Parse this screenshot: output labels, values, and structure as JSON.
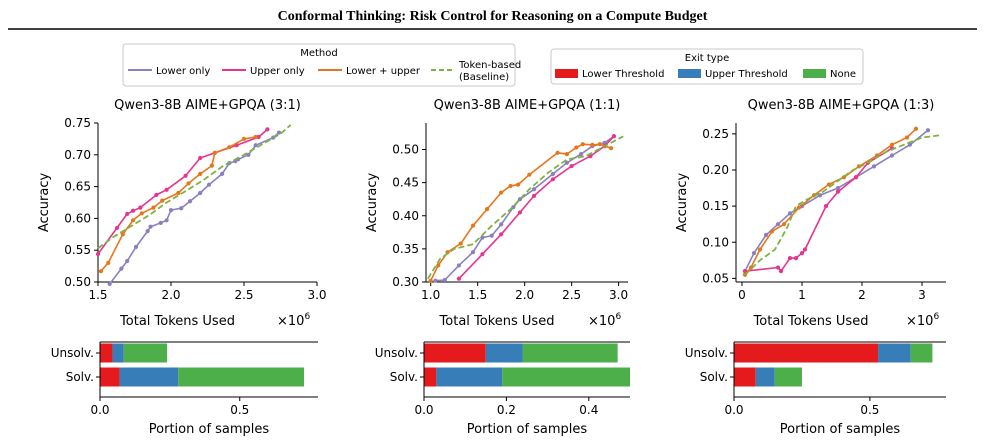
{
  "header": {
    "title": "Conformal Thinking: Risk Control for Reasoning on a Compute Budget"
  },
  "legend_method": {
    "title": "Method",
    "items": [
      {
        "label": "Lower only",
        "color": "#8c7fc0",
        "dash": false
      },
      {
        "label": "Upper only",
        "color": "#e8348c",
        "dash": false
      },
      {
        "label": "Lower + upper",
        "color": "#e6761b",
        "dash": false
      },
      {
        "label_lines": [
          "Token-based",
          "(Baseline)"
        ],
        "color": "#7cb342",
        "dash": true
      }
    ]
  },
  "legend_exit": {
    "title": "Exit type",
    "items": [
      {
        "label": "Lower Threshold",
        "color": "#e41a1c"
      },
      {
        "label": "Upper Threshold",
        "color": "#377eb8"
      },
      {
        "label": "None",
        "color": "#4daf4a"
      }
    ]
  },
  "chart_data": [
    {
      "type": "line",
      "title": "Qwen3-8B AIME+GPQA (3:1)",
      "xlabel": "Total Tokens Used",
      "xscale_label": "×10^6",
      "ylabel": "Accuracy",
      "xlim": [
        1.5,
        3.0
      ],
      "ylim": [
        0.5,
        0.75
      ],
      "xticks": [
        1.5,
        2.0,
        2.5,
        3.0
      ],
      "yticks": [
        0.5,
        0.55,
        0.6,
        0.65,
        0.7,
        0.75
      ],
      "series": [
        {
          "name": "Lower only",
          "color": "#8c7fc0",
          "markers": true,
          "x": [
            1.58,
            1.66,
            1.7,
            1.76,
            1.84,
            1.86,
            1.93,
            1.97,
            2.0,
            2.07,
            2.13,
            2.2,
            2.26,
            2.35,
            2.4,
            2.44,
            2.46,
            2.53,
            2.58,
            2.7,
            2.74
          ],
          "y": [
            0.497,
            0.521,
            0.533,
            0.555,
            0.58,
            0.587,
            0.593,
            0.597,
            0.613,
            0.616,
            0.627,
            0.64,
            0.653,
            0.67,
            0.687,
            0.69,
            0.693,
            0.7,
            0.715,
            0.727,
            0.735
          ]
        },
        {
          "name": "Upper only",
          "color": "#e8348c",
          "markers": true,
          "x": [
            1.5,
            1.63,
            1.7,
            1.74,
            1.79,
            1.9,
            1.97,
            2.1,
            2.2,
            2.3,
            2.45,
            2.6,
            2.66
          ],
          "y": [
            0.544,
            0.585,
            0.607,
            0.612,
            0.617,
            0.637,
            0.645,
            0.667,
            0.695,
            0.703,
            0.715,
            0.728,
            0.74
          ]
        },
        {
          "name": "Lower + upper",
          "color": "#e6761b",
          "markers": true,
          "x": [
            1.52,
            1.57,
            1.67,
            1.74,
            1.8,
            1.88,
            1.94,
            2.05,
            2.12,
            2.2,
            2.28,
            2.3,
            2.4,
            2.5,
            2.58
          ],
          "y": [
            0.517,
            0.53,
            0.575,
            0.597,
            0.608,
            0.617,
            0.628,
            0.64,
            0.655,
            0.67,
            0.683,
            0.703,
            0.712,
            0.725,
            0.728
          ]
        },
        {
          "name": "Token-based (Baseline)",
          "color": "#7cb342",
          "dash": true,
          "x": [
            1.5,
            1.6,
            1.72,
            1.85,
            1.97,
            2.1,
            2.22,
            2.36,
            2.5,
            2.62,
            2.75,
            2.82
          ],
          "y": [
            0.553,
            0.57,
            0.587,
            0.605,
            0.625,
            0.643,
            0.66,
            0.683,
            0.7,
            0.716,
            0.733,
            0.747
          ]
        }
      ]
    },
    {
      "type": "line",
      "title": "Qwen3-8B AIME+GPQA (1:1)",
      "xlabel": "Total Tokens Used",
      "xscale_label": "×10^6",
      "ylabel": "Accuracy",
      "xlim": [
        0.95,
        3.1
      ],
      "ylim": [
        0.3,
        0.54
      ],
      "xticks": [
        1.0,
        1.5,
        2.0,
        2.5,
        3.0
      ],
      "yticks": [
        0.3,
        0.35,
        0.4,
        0.45,
        0.5
      ],
      "series": [
        {
          "name": "Lower only",
          "color": "#8c7fc0",
          "markers": true,
          "x": [
            1.05,
            1.15,
            1.3,
            1.45,
            1.55,
            1.65,
            1.75,
            1.88,
            1.95,
            2.1,
            2.3,
            2.45,
            2.6,
            2.72,
            2.85,
            2.95
          ],
          "y": [
            0.302,
            0.303,
            0.325,
            0.345,
            0.367,
            0.37,
            0.387,
            0.413,
            0.425,
            0.44,
            0.463,
            0.48,
            0.493,
            0.505,
            0.51,
            0.52
          ]
        },
        {
          "name": "Upper only",
          "color": "#e8348c",
          "markers": true,
          "x": [
            1.3,
            1.55,
            1.75,
            1.95,
            2.1,
            2.3,
            2.5,
            2.7,
            2.85,
            2.95
          ],
          "y": [
            0.305,
            0.342,
            0.372,
            0.405,
            0.43,
            0.455,
            0.475,
            0.49,
            0.505,
            0.52
          ]
        },
        {
          "name": "Lower + upper",
          "color": "#e6761b",
          "markers": true,
          "x": [
            1.0,
            1.08,
            1.18,
            1.32,
            1.45,
            1.6,
            1.75,
            1.85,
            1.93,
            2.05,
            2.35,
            2.45,
            2.55,
            2.62,
            2.72,
            2.8,
            2.92
          ],
          "y": [
            0.302,
            0.325,
            0.345,
            0.358,
            0.385,
            0.41,
            0.435,
            0.445,
            0.447,
            0.462,
            0.495,
            0.493,
            0.503,
            0.508,
            0.507,
            0.508,
            0.502
          ]
        },
        {
          "name": "Token-based (Baseline)",
          "color": "#7cb342",
          "dash": true,
          "x": [
            0.97,
            1.1,
            1.25,
            1.45,
            1.65,
            1.85,
            2.05,
            2.25,
            2.45,
            2.65,
            2.85,
            3.05
          ],
          "y": [
            0.305,
            0.335,
            0.35,
            0.357,
            0.385,
            0.41,
            0.44,
            0.465,
            0.485,
            0.49,
            0.505,
            0.52
          ]
        }
      ]
    },
    {
      "type": "line",
      "title": "Qwen3-8B AIME+GPQA (1:3)",
      "xlabel": "Total Tokens Used",
      "xscale_label": "×10^6",
      "ylabel": "Accuracy",
      "xlim": [
        -0.1,
        3.4
      ],
      "ylim": [
        0.045,
        0.265
      ],
      "xticks": [
        0,
        1,
        2,
        3
      ],
      "yticks": [
        0.05,
        0.1,
        0.15,
        0.2,
        0.25
      ],
      "series": [
        {
          "name": "Lower only",
          "color": "#8c7fc0",
          "markers": true,
          "x": [
            0.05,
            0.2,
            0.4,
            0.6,
            0.8,
            1.0,
            1.3,
            1.6,
            1.9,
            2.2,
            2.5,
            2.8,
            3.1
          ],
          "y": [
            0.06,
            0.085,
            0.11,
            0.125,
            0.14,
            0.15,
            0.165,
            0.175,
            0.19,
            0.205,
            0.22,
            0.235,
            0.255
          ]
        },
        {
          "name": "Upper only",
          "color": "#e8348c",
          "markers": true,
          "x": [
            0.05,
            0.6,
            0.65,
            0.8,
            0.9,
            1.0,
            1.05,
            1.4,
            1.6,
            1.9,
            2.1,
            2.5
          ],
          "y": [
            0.06,
            0.065,
            0.06,
            0.078,
            0.078,
            0.085,
            0.09,
            0.15,
            0.17,
            0.19,
            0.21,
            0.23
          ]
        },
        {
          "name": "Lower + upper",
          "color": "#e6761b",
          "markers": true,
          "x": [
            0.05,
            0.15,
            0.3,
            0.5,
            0.7,
            0.95,
            1.2,
            1.45,
            1.7,
            1.95,
            2.25,
            2.5,
            2.75,
            2.9
          ],
          "y": [
            0.055,
            0.065,
            0.09,
            0.115,
            0.125,
            0.148,
            0.165,
            0.18,
            0.19,
            0.205,
            0.22,
            0.235,
            0.245,
            0.257
          ]
        },
        {
          "name": "Token-based (Baseline)",
          "color": "#7cb342",
          "dash": true,
          "x": [
            0.05,
            0.3,
            0.55,
            0.75,
            0.9,
            1.1,
            1.35,
            1.6,
            1.85,
            2.1,
            2.4,
            2.7,
            3.0,
            3.3
          ],
          "y": [
            0.055,
            0.075,
            0.09,
            0.12,
            0.15,
            0.16,
            0.17,
            0.185,
            0.2,
            0.21,
            0.225,
            0.235,
            0.245,
            0.248
          ]
        }
      ]
    },
    {
      "type": "bar",
      "orientation": "horizontal",
      "stacked": true,
      "xlabel": "Portion of samples",
      "xlim": [
        0,
        0.78
      ],
      "xticks": [
        0.0,
        0.5
      ],
      "categories": [
        "Unsolv.",
        "Solv."
      ],
      "series": [
        {
          "name": "Lower Threshold",
          "color": "#e41a1c",
          "values": [
            0.045,
            0.07
          ]
        },
        {
          "name": "Upper Threshold",
          "color": "#377eb8",
          "values": [
            0.04,
            0.21
          ]
        },
        {
          "name": "None",
          "color": "#4daf4a",
          "values": [
            0.155,
            0.45
          ]
        }
      ]
    },
    {
      "type": "bar",
      "orientation": "horizontal",
      "stacked": true,
      "xlabel": "Portion of samples",
      "xlim": [
        0,
        0.5
      ],
      "xticks": [
        0.0,
        0.2,
        0.4
      ],
      "categories": [
        "Unsolv.",
        "Solv."
      ],
      "series": [
        {
          "name": "Lower Threshold",
          "color": "#e41a1c",
          "values": [
            0.15,
            0.03
          ]
        },
        {
          "name": "Upper Threshold",
          "color": "#377eb8",
          "values": [
            0.09,
            0.16
          ]
        },
        {
          "name": "None",
          "color": "#4daf4a",
          "values": [
            0.23,
            0.31
          ]
        }
      ]
    },
    {
      "type": "bar",
      "orientation": "horizontal",
      "stacked": true,
      "xlabel": "Portion of samples",
      "xlim": [
        0,
        0.78
      ],
      "xticks": [
        0.0,
        0.5
      ],
      "categories": [
        "Unsolv.",
        "Solv."
      ],
      "series": [
        {
          "name": "Lower Threshold",
          "color": "#e41a1c",
          "values": [
            0.53,
            0.08
          ]
        },
        {
          "name": "Upper Threshold",
          "color": "#377eb8",
          "values": [
            0.12,
            0.07
          ]
        },
        {
          "name": "None",
          "color": "#4daf4a",
          "values": [
            0.08,
            0.1
          ]
        }
      ]
    }
  ]
}
